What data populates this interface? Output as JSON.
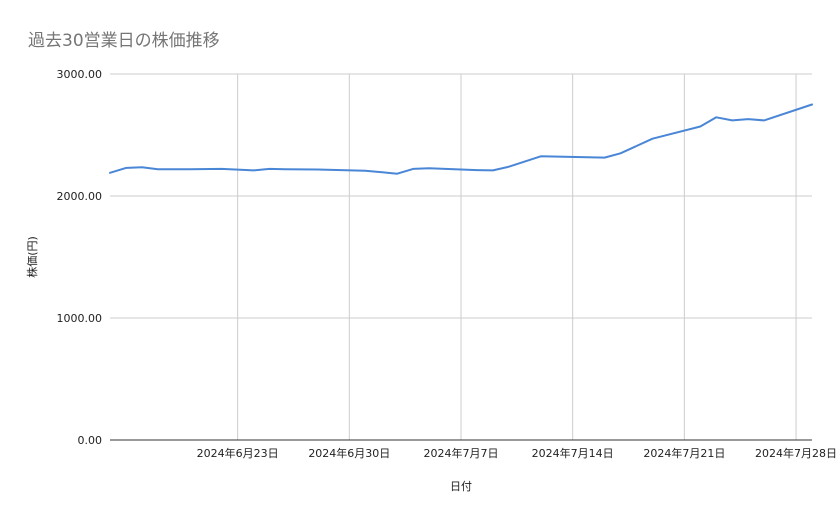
{
  "chart_data": {
    "type": "line",
    "title": "過去30営業日の株価推移",
    "xlabel": "日付",
    "ylabel": "株価(円)",
    "ylim": [
      0,
      3000
    ],
    "y_ticks": [
      "0.00",
      "1000.00",
      "2000.00",
      "3000.00"
    ],
    "x_range": [
      "2024-06-15",
      "2024-07-29"
    ],
    "x_tick_labels": [
      {
        "date": "2024-06-23",
        "label": "2024年6月23日"
      },
      {
        "date": "2024-06-30",
        "label": "2024年6月30日"
      },
      {
        "date": "2024-07-07",
        "label": "2024年7月7日"
      },
      {
        "date": "2024-07-14",
        "label": "2024年7月14日"
      },
      {
        "date": "2024-07-21",
        "label": "2024年7月21日"
      },
      {
        "date": "2024-07-28",
        "label": "2024年7月28日"
      }
    ],
    "grid": true,
    "line_color": "#4a86d6",
    "series": [
      {
        "x": [
          "2024-06-15",
          "2024-06-16",
          "2024-06-17",
          "2024-06-18",
          "2024-06-20",
          "2024-06-22",
          "2024-06-24",
          "2024-06-25",
          "2024-06-26",
          "2024-06-28",
          "2024-07-01",
          "2024-07-03",
          "2024-07-04",
          "2024-07-05",
          "2024-07-08",
          "2024-07-09",
          "2024-07-10",
          "2024-07-12",
          "2024-07-16",
          "2024-07-17",
          "2024-07-19",
          "2024-07-22",
          "2024-07-23",
          "2024-07-24",
          "2024-07-25",
          "2024-07-26",
          "2024-07-29"
        ],
        "values": [
          2190,
          2230,
          2235,
          2220,
          2220,
          2222,
          2210,
          2222,
          2220,
          2217,
          2207,
          2183,
          2222,
          2227,
          2212,
          2210,
          2240,
          2325,
          2315,
          2350,
          2470,
          2570,
          2645,
          2620,
          2630,
          2620,
          2750
        ]
      }
    ]
  }
}
